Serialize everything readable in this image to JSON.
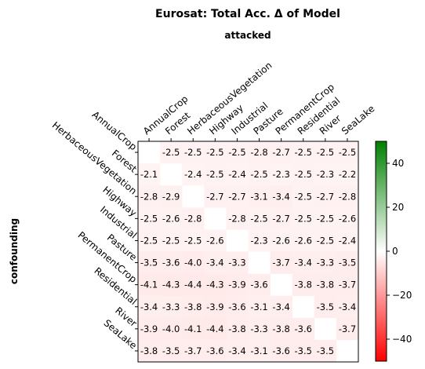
{
  "chart_data": {
    "type": "heatmap",
    "title": "Eurosat: Total Acc. Δ of Model",
    "xlabel": "attacked",
    "ylabel": "confounding",
    "x_categories": [
      "AnnualCrop",
      "Forest",
      "HerbaceousVegetation",
      "Highway",
      "Industrial",
      "Pasture",
      "PermanentCrop",
      "Residential",
      "River",
      "SeaLake"
    ],
    "y_categories": [
      "AnnualCrop",
      "Forest",
      "HerbaceousVegetation",
      "Highway",
      "Industrial",
      "Pasture",
      "PermanentCrop",
      "Residential",
      "River",
      "SeaLake"
    ],
    "values": [
      [
        null,
        -2.5,
        -2.5,
        -2.5,
        -2.5,
        -2.8,
        -2.7,
        -2.5,
        -2.5,
        -2.5
      ],
      [
        -2.1,
        null,
        -2.4,
        -2.5,
        -2.4,
        -2.5,
        -2.3,
        -2.5,
        -2.3,
        -2.2
      ],
      [
        -2.8,
        -2.9,
        null,
        -2.7,
        -2.7,
        -3.1,
        -3.4,
        -2.5,
        -2.7,
        -2.8
      ],
      [
        -2.5,
        -2.6,
        -2.8,
        null,
        -2.8,
        -2.5,
        -2.7,
        -2.5,
        -2.5,
        -2.6
      ],
      [
        -2.5,
        -2.5,
        -2.5,
        -2.6,
        null,
        -2.3,
        -2.6,
        -2.6,
        -2.5,
        -2.4
      ],
      [
        -3.5,
        -3.6,
        -4.0,
        -3.4,
        -3.3,
        null,
        -3.7,
        -3.4,
        -3.3,
        -3.5
      ],
      [
        -4.1,
        -4.3,
        -4.4,
        -4.3,
        -3.9,
        -3.6,
        null,
        -3.8,
        -3.8,
        -3.7
      ],
      [
        -3.4,
        -3.3,
        -3.8,
        -3.9,
        -3.6,
        -3.1,
        -3.4,
        null,
        -3.5,
        -3.4
      ],
      [
        -3.9,
        -4.0,
        -4.1,
        -4.4,
        -3.8,
        -3.3,
        -3.8,
        -3.6,
        null,
        -3.7
      ],
      [
        -3.8,
        -3.5,
        -3.7,
        -3.6,
        -3.4,
        -3.1,
        -3.6,
        -3.5,
        -3.5,
        null
      ]
    ],
    "colorbar": {
      "range": [
        -50,
        50
      ],
      "ticks": [
        -40,
        -20,
        0,
        20,
        40
      ],
      "colors": [
        "#ff0000",
        "#ffffff",
        "#008000"
      ]
    }
  }
}
